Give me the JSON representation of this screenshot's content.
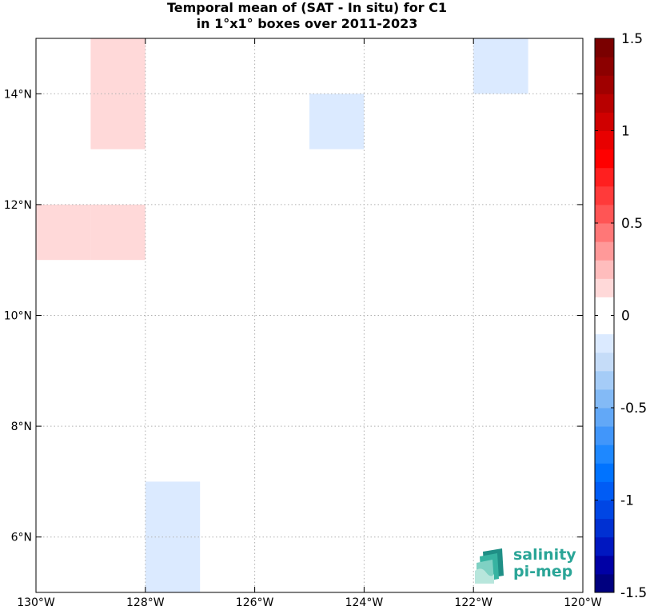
{
  "title": {
    "line1": "Temporal mean of (SAT - In situ) for C1",
    "line2": "in 1°x1° boxes over 2011-2023"
  },
  "logo": {
    "line1": "salinity",
    "line2": "pi-mep",
    "colors": [
      "#1f8f86",
      "#36b3a1",
      "#7fd1c3",
      "#b8e6dc"
    ]
  },
  "chart_data": {
    "type": "heatmap",
    "title": "Temporal mean of (SAT - In situ) for C1 in 1°x1° boxes over 2011-2023",
    "xlim": [
      -130,
      -120
    ],
    "ylim": [
      5,
      15
    ],
    "grid": true,
    "x_ticks": [
      {
        "value": -130,
        "label": "130°W"
      },
      {
        "value": -128,
        "label": "128°W"
      },
      {
        "value": -126,
        "label": "126°W"
      },
      {
        "value": -124,
        "label": "124°W"
      },
      {
        "value": -122,
        "label": "122°W"
      },
      {
        "value": -120,
        "label": "120°W"
      }
    ],
    "y_ticks": [
      {
        "value": 6,
        "label": "6°N"
      },
      {
        "value": 8,
        "label": "8°N"
      },
      {
        "value": 10,
        "label": "10°N"
      },
      {
        "value": 12,
        "label": "12°N"
      },
      {
        "value": 14,
        "label": "14°N"
      }
    ],
    "boxes": [
      {
        "lon": [
          -129,
          -128
        ],
        "lat": [
          14,
          15
        ],
        "value": 0.15
      },
      {
        "lon": [
          -129,
          -128
        ],
        "lat": [
          13,
          14
        ],
        "value": 0.15
      },
      {
        "lon": [
          -130,
          -129
        ],
        "lat": [
          11,
          12
        ],
        "value": 0.15
      },
      {
        "lon": [
          -129,
          -128
        ],
        "lat": [
          11,
          12
        ],
        "value": 0.15
      },
      {
        "lon": [
          -125,
          -124
        ],
        "lat": [
          13,
          14
        ],
        "value": -0.15
      },
      {
        "lon": [
          -122,
          -121
        ],
        "lat": [
          14,
          15
        ],
        "value": -0.15
      },
      {
        "lon": [
          -128,
          -127
        ],
        "lat": [
          6,
          7
        ],
        "value": -0.15
      },
      {
        "lon": [
          -128,
          -127
        ],
        "lat": [
          5,
          6
        ],
        "value": -0.15
      }
    ],
    "colorbar": {
      "range": [
        -1.5,
        1.5
      ],
      "step": 0.1,
      "ticks": [
        {
          "value": 1.5,
          "label": "1.5"
        },
        {
          "value": 1.0,
          "label": "1"
        },
        {
          "value": 0.5,
          "label": "0.5"
        },
        {
          "value": 0.0,
          "label": "0"
        },
        {
          "value": -0.5,
          "label": "-0.5"
        },
        {
          "value": -1.0,
          "label": "-1"
        },
        {
          "value": -1.5,
          "label": "-1.5"
        }
      ],
      "colors_low_to_high": [
        "#00007f",
        "#0000a5",
        "#0017c0",
        "#0030d2",
        "#0046e4",
        "#005cf5",
        "#0073ff",
        "#1e88ff",
        "#4196fa",
        "#62a8f7",
        "#83baf6",
        "#a5ccf7",
        "#c5dcf8",
        "#dbeaff",
        "#ffffff",
        "#ffffff",
        "#ffd9d9",
        "#ffbdbd",
        "#ff9999",
        "#ff7777",
        "#ff5555",
        "#ff3a3a",
        "#ff1f1f",
        "#ff0000",
        "#e80000",
        "#d00000",
        "#b80000",
        "#a00000",
        "#8c0000",
        "#7a0000"
      ]
    }
  }
}
